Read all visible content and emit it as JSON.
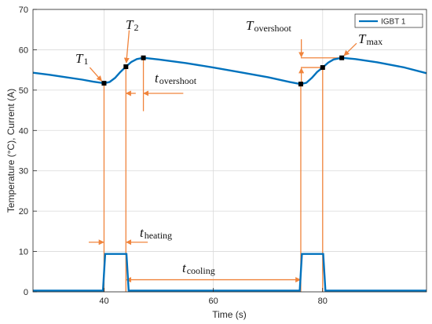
{
  "chart_data": {
    "type": "line",
    "xlabel": "Time (s)",
    "ylabel": "Temperature (°C), Current (A)",
    "xlim": [
      27,
      99
    ],
    "ylim": [
      0,
      70
    ],
    "xticks": [
      40,
      60,
      80
    ],
    "yticks": [
      0,
      10,
      20,
      30,
      40,
      50,
      60,
      70
    ],
    "grid": true,
    "legend_position": "top-right",
    "colors": {
      "series": "#0072BD",
      "annotation": "#F0843C",
      "marker": "#000000"
    },
    "series": [
      {
        "name": "IGBT 1",
        "temperature": {
          "x": [
            27,
            30,
            33,
            36,
            38,
            39.5,
            40,
            41,
            42,
            43,
            44,
            45,
            46,
            47.2,
            50,
            55,
            60,
            65,
            70,
            74,
            75.5,
            76,
            77,
            78,
            79,
            80,
            81,
            82,
            83.5,
            86,
            90,
            95,
            99
          ],
          "y": [
            54.3,
            53.8,
            53.2,
            52.6,
            52.1,
            51.8,
            51.7,
            52.0,
            53.0,
            54.5,
            55.8,
            57.0,
            57.7,
            58.0,
            57.6,
            56.7,
            55.6,
            54.4,
            53.2,
            52.0,
            51.6,
            51.5,
            51.8,
            53.0,
            54.5,
            55.6,
            56.8,
            57.6,
            58.0,
            57.7,
            56.9,
            55.6,
            54.2
          ]
        },
        "current": {
          "x": [
            27,
            39.8,
            40.2,
            44.1,
            44.5,
            75.8,
            76.2,
            80.1,
            80.5,
            99
          ],
          "y": [
            0.3,
            0.3,
            9.4,
            9.4,
            0.3,
            0.3,
            9.4,
            9.4,
            0.3,
            0.3
          ]
        }
      }
    ],
    "markers": [
      {
        "x": 40,
        "y": 51.7
      },
      {
        "x": 44,
        "y": 55.8
      },
      {
        "x": 47.2,
        "y": 58.0
      },
      {
        "x": 76,
        "y": 51.5
      },
      {
        "x": 80,
        "y": 55.6
      },
      {
        "x": 83.5,
        "y": 58.0
      }
    ],
    "annotations": {
      "t1": {
        "main": "T",
        "sub": "1"
      },
      "t2": {
        "main": "T",
        "sub": "2"
      },
      "t_overshoot": {
        "main": "t",
        "sub": "overshoot"
      },
      "T_overshoot": {
        "main": "T",
        "sub": "overshoot"
      },
      "t_max": {
        "main": "T",
        "sub": "max"
      },
      "t_heating": {
        "main": "t",
        "sub": "heating"
      },
      "t_cooling": {
        "main": "t",
        "sub": "cooling"
      }
    }
  }
}
